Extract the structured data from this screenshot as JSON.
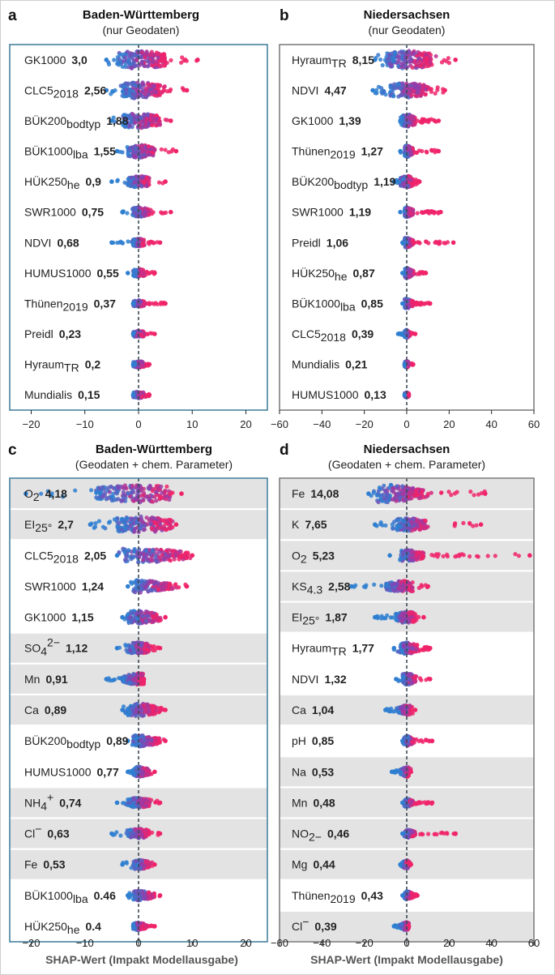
{
  "chart_data": [
    {
      "type": "scatter",
      "panel_label": "a",
      "title": "Baden-Württemberg",
      "subtitle": "(nur Geodaten)",
      "xlabel": "",
      "xlim": [
        -24,
        24
      ],
      "xticks": [
        -20,
        -10,
        0,
        10,
        20
      ],
      "xtick_labels": [
        "−20",
        "−10",
        "0",
        "10",
        "20"
      ],
      "background": "white",
      "frame_color": "#3b7a99",
      "features": [
        {
          "name": "GK1000",
          "sub": "",
          "sup": "",
          "value": "3,0",
          "min": -6,
          "max": 11,
          "q": [
            -4,
            0,
            5
          ],
          "w": 11,
          "color": "mixed",
          "shaded": false
        },
        {
          "name": "CLC5",
          "sub": "2018",
          "sup": "",
          "value": "2,56",
          "min": -6,
          "max": 9,
          "q": [
            -3,
            0,
            4
          ],
          "w": 10,
          "color": "mixed",
          "shaded": false
        },
        {
          "name": "BÜK200",
          "sub": "bodtyp",
          "sup": "",
          "value": "1,88",
          "min": -5,
          "max": 6,
          "q": [
            -3,
            0,
            4
          ],
          "w": 9,
          "color": "mixed",
          "shaded": false
        },
        {
          "name": "BÜK1000",
          "sub": "lba",
          "sup": "",
          "value": "1,55",
          "min": -4,
          "max": 7,
          "q": [
            -2,
            0,
            3
          ],
          "w": 8,
          "color": "mixed",
          "shaded": false
        },
        {
          "name": "HÜK250",
          "sub": "he",
          "sup": "",
          "value": "0,9",
          "min": -5,
          "max": 5,
          "q": [
            -2,
            0,
            2
          ],
          "w": 7,
          "color": "mixed",
          "shaded": false
        },
        {
          "name": "SWR1000",
          "sub": "",
          "sup": "",
          "value": "0,75",
          "min": -3,
          "max": 6,
          "q": [
            -1,
            0,
            2
          ],
          "w": 6,
          "color": "mixed",
          "shaded": false
        },
        {
          "name": "NDVI",
          "sub": "",
          "sup": "",
          "value": "0,68",
          "min": -5,
          "max": 4,
          "q": [
            -1,
            0,
            1
          ],
          "w": 5,
          "color": "mixed",
          "shaded": false
        },
        {
          "name": "HUMUS1000",
          "sub": "",
          "sup": "",
          "value": "0,55",
          "min": -2,
          "max": 3,
          "q": [
            -1,
            0,
            1
          ],
          "w": 5,
          "color": "mixed",
          "shaded": false
        },
        {
          "name": "Thünen",
          "sub": "2019",
          "sup": "",
          "value": "0,37",
          "min": -1,
          "max": 5,
          "q": [
            -1,
            0,
            1
          ],
          "w": 4,
          "color": "mixed",
          "shaded": false
        },
        {
          "name": "Preidl",
          "sub": "",
          "sup": "",
          "value": "0,23",
          "min": -1,
          "max": 3,
          "q": [
            -1,
            0,
            1
          ],
          "w": 4,
          "color": "mixed",
          "shaded": false
        },
        {
          "name": "Hyraum",
          "sub": "TR",
          "sup": "",
          "value": "0,2",
          "min": -1,
          "max": 2,
          "q": [
            -1,
            0,
            1
          ],
          "w": 4,
          "color": "mixed",
          "shaded": false
        },
        {
          "name": "Mundialis",
          "sub": "",
          "sup": "",
          "value": "0,15",
          "min": -1,
          "max": 2,
          "q": [
            -1,
            0,
            1
          ],
          "w": 4,
          "color": "mixed",
          "shaded": false
        }
      ]
    },
    {
      "type": "scatter",
      "panel_label": "b",
      "title": "Niedersachsen",
      "subtitle": "(nur Geodaten)",
      "xlabel": "",
      "xlim": [
        -60,
        60
      ],
      "xticks": [
        -60,
        -40,
        -20,
        0,
        20,
        40,
        60
      ],
      "xtick_labels": [
        "−60",
        "−40",
        "−20",
        "0",
        "20",
        "40",
        "60"
      ],
      "background": "white",
      "frame_color": "#777777",
      "features": [
        {
          "name": "Hyraum",
          "sub": "TR",
          "sup": "",
          "value": "8,15",
          "min": -15,
          "max": 23,
          "q": [
            -10,
            0,
            12
          ],
          "w": 11,
          "color": "mixed",
          "shaded": false
        },
        {
          "name": "NDVI",
          "sub": "",
          "sup": "",
          "value": "4,47",
          "min": -16,
          "max": 18,
          "q": [
            -8,
            0,
            10
          ],
          "w": 9,
          "color": "mixed",
          "shaded": false
        },
        {
          "name": "GK1000",
          "sub": "",
          "sup": "",
          "value": "1,39",
          "min": -3,
          "max": 15,
          "q": [
            -2,
            0,
            4
          ],
          "w": 8,
          "color": "mixed",
          "shaded": false
        },
        {
          "name": "Thünen",
          "sub": "2019",
          "sup": "",
          "value": "1,27",
          "min": -3,
          "max": 15,
          "q": [
            -1,
            0,
            3
          ],
          "w": 7,
          "color": "mixed",
          "shaded": false
        },
        {
          "name": "BÜK200",
          "sub": "bodtyp",
          "sup": "",
          "value": "1,19",
          "min": -6,
          "max": 6,
          "q": [
            -3,
            0,
            3
          ],
          "w": 7,
          "color": "mixed",
          "shaded": false
        },
        {
          "name": "SWR1000",
          "sub": "",
          "sup": "",
          "value": "1,19",
          "min": -3,
          "max": 16,
          "q": [
            -1,
            0,
            3
          ],
          "w": 6,
          "color": "mixed",
          "shaded": false
        },
        {
          "name": "Preidl",
          "sub": "",
          "sup": "",
          "value": "1,06",
          "min": -2,
          "max": 22,
          "q": [
            -1,
            0,
            3
          ],
          "w": 6,
          "color": "mixed",
          "shaded": false
        },
        {
          "name": "HÜK250",
          "sub": "he",
          "sup": "",
          "value": "0,87",
          "min": -2,
          "max": 9,
          "q": [
            -1,
            0,
            3
          ],
          "w": 6,
          "color": "mixed",
          "shaded": false
        },
        {
          "name": "BÜK1000",
          "sub": "lba",
          "sup": "",
          "value": "0,85",
          "min": -2,
          "max": 11,
          "q": [
            -1,
            0,
            3
          ],
          "w": 6,
          "color": "mixed",
          "shaded": false
        },
        {
          "name": "CLC5",
          "sub": "2018",
          "sup": "",
          "value": "0,39",
          "min": -4,
          "max": 4,
          "q": [
            -1,
            0,
            1
          ],
          "w": 5,
          "color": "mixed",
          "shaded": false
        },
        {
          "name": "Mundialis",
          "sub": "",
          "sup": "",
          "value": "0,21",
          "min": -1,
          "max": 3,
          "q": [
            -1,
            0,
            1
          ],
          "w": 4,
          "color": "mixed",
          "shaded": false
        },
        {
          "name": "HUMUS1000",
          "sub": "",
          "sup": "",
          "value": "0,13",
          "min": -1,
          "max": 1,
          "q": [
            -1,
            0,
            1
          ],
          "w": 3,
          "color": "mixed",
          "shaded": false
        }
      ]
    },
    {
      "type": "scatter",
      "panel_label": "c",
      "title": "Baden-Württemberg",
      "subtitle": "(Geodaten + chem. Parameter)",
      "xlabel": "SHAP-Wert (Impakt Modellausgabe)",
      "xlim": [
        -24,
        24
      ],
      "xticks": [
        -20,
        -10,
        0,
        10,
        20
      ],
      "xtick_labels": [
        "−20",
        "−10",
        "0",
        "10",
        "20"
      ],
      "background": "white",
      "frame_color": "#3b7a99",
      "features": [
        {
          "name": "O",
          "sub": "2",
          "sup": "",
          "value": "4,18",
          "min": -21,
          "max": 8,
          "q": [
            -8,
            0,
            7
          ],
          "w": 11,
          "color": "mixed",
          "shaded": true
        },
        {
          "name": "EI",
          "sub": "25°",
          "sup": "",
          "value": "2,7",
          "min": -9,
          "max": 7,
          "q": [
            -4,
            0,
            6
          ],
          "w": 10,
          "color": "mixed",
          "shaded": true
        },
        {
          "name": "CLC5",
          "sub": "2018",
          "sup": "",
          "value": "2,05",
          "min": -4,
          "max": 10,
          "q": [
            -3,
            0,
            9
          ],
          "w": 9,
          "color": "mixed",
          "shaded": false
        },
        {
          "name": "SWR1000",
          "sub": "",
          "sup": "",
          "value": "1,24",
          "min": -2,
          "max": 9,
          "q": [
            -1,
            0,
            6
          ],
          "w": 8,
          "color": "mixed",
          "shaded": false
        },
        {
          "name": "GK1000",
          "sub": "",
          "sup": "",
          "value": "1,15",
          "min": -3,
          "max": 5,
          "q": [
            -2,
            0,
            4
          ],
          "w": 8,
          "color": "mixed",
          "shaded": false
        },
        {
          "name": "SO",
          "sub": "4",
          "sup": "2−",
          "value": "1,12",
          "min": -4,
          "max": 4,
          "q": [
            -2,
            0,
            2
          ],
          "w": 7,
          "color": "mixed",
          "shaded": true
        },
        {
          "name": "Mn",
          "sub": "",
          "sup": "",
          "value": "0,91",
          "min": -6,
          "max": 1,
          "q": [
            -3,
            0,
            1
          ],
          "w": 7,
          "color": "mixed",
          "shaded": true
        },
        {
          "name": "Ca",
          "sub": "",
          "sup": "",
          "value": "0,89",
          "min": -3,
          "max": 5,
          "q": [
            -2,
            0,
            3
          ],
          "w": 8,
          "color": "mixed",
          "shaded": true
        },
        {
          "name": "BÜK200",
          "sub": "bodtyp",
          "sup": "",
          "value": "0,89",
          "min": -2,
          "max": 5,
          "q": [
            -1,
            0,
            4
          ],
          "w": 7,
          "color": "mixed",
          "shaded": false
        },
        {
          "name": "HUMUS1000",
          "sub": "",
          "sup": "",
          "value": "0,77",
          "min": -2,
          "max": 3,
          "q": [
            -1,
            0,
            2
          ],
          "w": 6,
          "color": "mixed",
          "shaded": false
        },
        {
          "name": "NH",
          "sub": "4",
          "sup": "+",
          "value": "0,74",
          "min": -4,
          "max": 4,
          "q": [
            -2,
            0,
            2
          ],
          "w": 6,
          "color": "mixed",
          "shaded": true
        },
        {
          "name": "Cl",
          "sub": "",
          "sup": "−",
          "value": "0,63",
          "min": -5,
          "max": 4,
          "q": [
            -2,
            0,
            2
          ],
          "w": 6,
          "color": "mixed",
          "shaded": true
        },
        {
          "name": "Fe",
          "sub": "",
          "sup": "",
          "value": "0,53",
          "min": -3,
          "max": 3,
          "q": [
            -1,
            0,
            2
          ],
          "w": 6,
          "color": "mixed",
          "shaded": true
        },
        {
          "name": "BÜK1000",
          "sub": "lba",
          "sup": "",
          "value": "0.46",
          "min": -2,
          "max": 4,
          "q": [
            -1,
            0,
            3
          ],
          "w": 6,
          "color": "mixed",
          "shaded": false
        },
        {
          "name": "HÜK250",
          "sub": "he",
          "sup": "",
          "value": "0.4",
          "min": -1,
          "max": 3,
          "q": [
            -1,
            0,
            1
          ],
          "w": 5,
          "color": "mixed",
          "shaded": false
        }
      ]
    },
    {
      "type": "scatter",
      "panel_label": "d",
      "title": "Niedersachsen",
      "subtitle": "(Geodaten + chem. Parameter)",
      "xlabel": "SHAP-Wert (Impakt Modellausgabe)",
      "xlim": [
        -60,
        60
      ],
      "xticks": [
        -60,
        -40,
        -20,
        0,
        20,
        40,
        60
      ],
      "xtick_labels": [
        "−60",
        "−40",
        "−20",
        "0",
        "20",
        "40",
        "60"
      ],
      "background": "white",
      "frame_color": "#777777",
      "features": [
        {
          "name": "Fe",
          "sub": "",
          "sup": "",
          "value": "14,08",
          "min": -18,
          "max": 37,
          "q": [
            -14,
            -10,
            8
          ],
          "w": 11,
          "color": "mixed",
          "shaded": true
        },
        {
          "name": "K",
          "sub": "",
          "sup": "",
          "value": "7,65",
          "min": -15,
          "max": 35,
          "q": [
            -5,
            0,
            10
          ],
          "w": 8,
          "color": "mixed",
          "shaded": true
        },
        {
          "name": "O",
          "sub": "2",
          "sup": "",
          "value": "5,23",
          "min": -8,
          "max": 58,
          "q": [
            -3,
            0,
            8
          ],
          "w": 7,
          "color": "mixed",
          "shaded": true
        },
        {
          "name": "KS",
          "sub": "4.3",
          "sup": "",
          "value": "2,58",
          "min": -26,
          "max": 10,
          "q": [
            -10,
            -1,
            3
          ],
          "w": 7,
          "color": "mixed",
          "shaded": true
        },
        {
          "name": "EI",
          "sub": "25°",
          "sup": "",
          "value": "1,87",
          "min": -15,
          "max": 8,
          "q": [
            -5,
            0,
            4
          ],
          "w": 7,
          "color": "mixed",
          "shaded": true
        },
        {
          "name": "Hyraum",
          "sub": "TR",
          "sup": "",
          "value": "1,77",
          "min": -6,
          "max": 11,
          "q": [
            -3,
            0,
            5
          ],
          "w": 7,
          "color": "mixed",
          "shaded": false
        },
        {
          "name": "NDVI",
          "sub": "",
          "sup": "",
          "value": "1,32",
          "min": -5,
          "max": 11,
          "q": [
            -2,
            0,
            4
          ],
          "w": 7,
          "color": "mixed",
          "shaded": false
        },
        {
          "name": "Ca",
          "sub": "",
          "sup": "",
          "value": "1,04",
          "min": -10,
          "max": 4,
          "q": [
            -4,
            0,
            2
          ],
          "w": 6,
          "color": "mixed",
          "shaded": true
        },
        {
          "name": "pH",
          "sub": "",
          "sup": "",
          "value": "0,85",
          "min": -2,
          "max": 12,
          "q": [
            -1,
            0,
            3
          ],
          "w": 6,
          "color": "mixed",
          "shaded": false
        },
        {
          "name": "Na",
          "sub": "",
          "sup": "",
          "value": "0,53",
          "min": -7,
          "max": 2,
          "q": [
            -3,
            0,
            1
          ],
          "w": 6,
          "color": "mixed",
          "shaded": true
        },
        {
          "name": "Mn",
          "sub": "",
          "sup": "",
          "value": "0,48",
          "min": -2,
          "max": 12,
          "q": [
            -1,
            0,
            3
          ],
          "w": 5,
          "color": "mixed",
          "shaded": true
        },
        {
          "name": "NO",
          "sub": "2−",
          "sup": "",
          "value": "0,46",
          "min": -2,
          "max": 23,
          "q": [
            -1,
            0,
            4
          ],
          "w": 5,
          "color": "mixed",
          "shaded": true
        },
        {
          "name": "Mg",
          "sub": "",
          "sup": "",
          "value": "0,44",
          "min": -3,
          "max": 2,
          "q": [
            -2,
            0,
            1
          ],
          "w": 5,
          "color": "mixed",
          "shaded": true
        },
        {
          "name": "Thünen",
          "sub": "2019",
          "sup": "",
          "value": "0,43",
          "min": -2,
          "max": 5,
          "q": [
            -1,
            0,
            3
          ],
          "w": 5,
          "color": "mixed",
          "shaded": false
        },
        {
          "name": "Cl",
          "sub": "",
          "sup": "−",
          "value": "0,39",
          "min": -6,
          "max": 1,
          "q": [
            -3,
            0,
            1
          ],
          "w": 5,
          "color": "mixed",
          "shaded": true
        }
      ]
    }
  ],
  "colors": {
    "low_value": "#2f7fd1",
    "high_value": "#f0236a",
    "mid_value": "#8a3fb0",
    "row_shade": "#e3e3e3",
    "zero_line": "#3d4a55"
  }
}
